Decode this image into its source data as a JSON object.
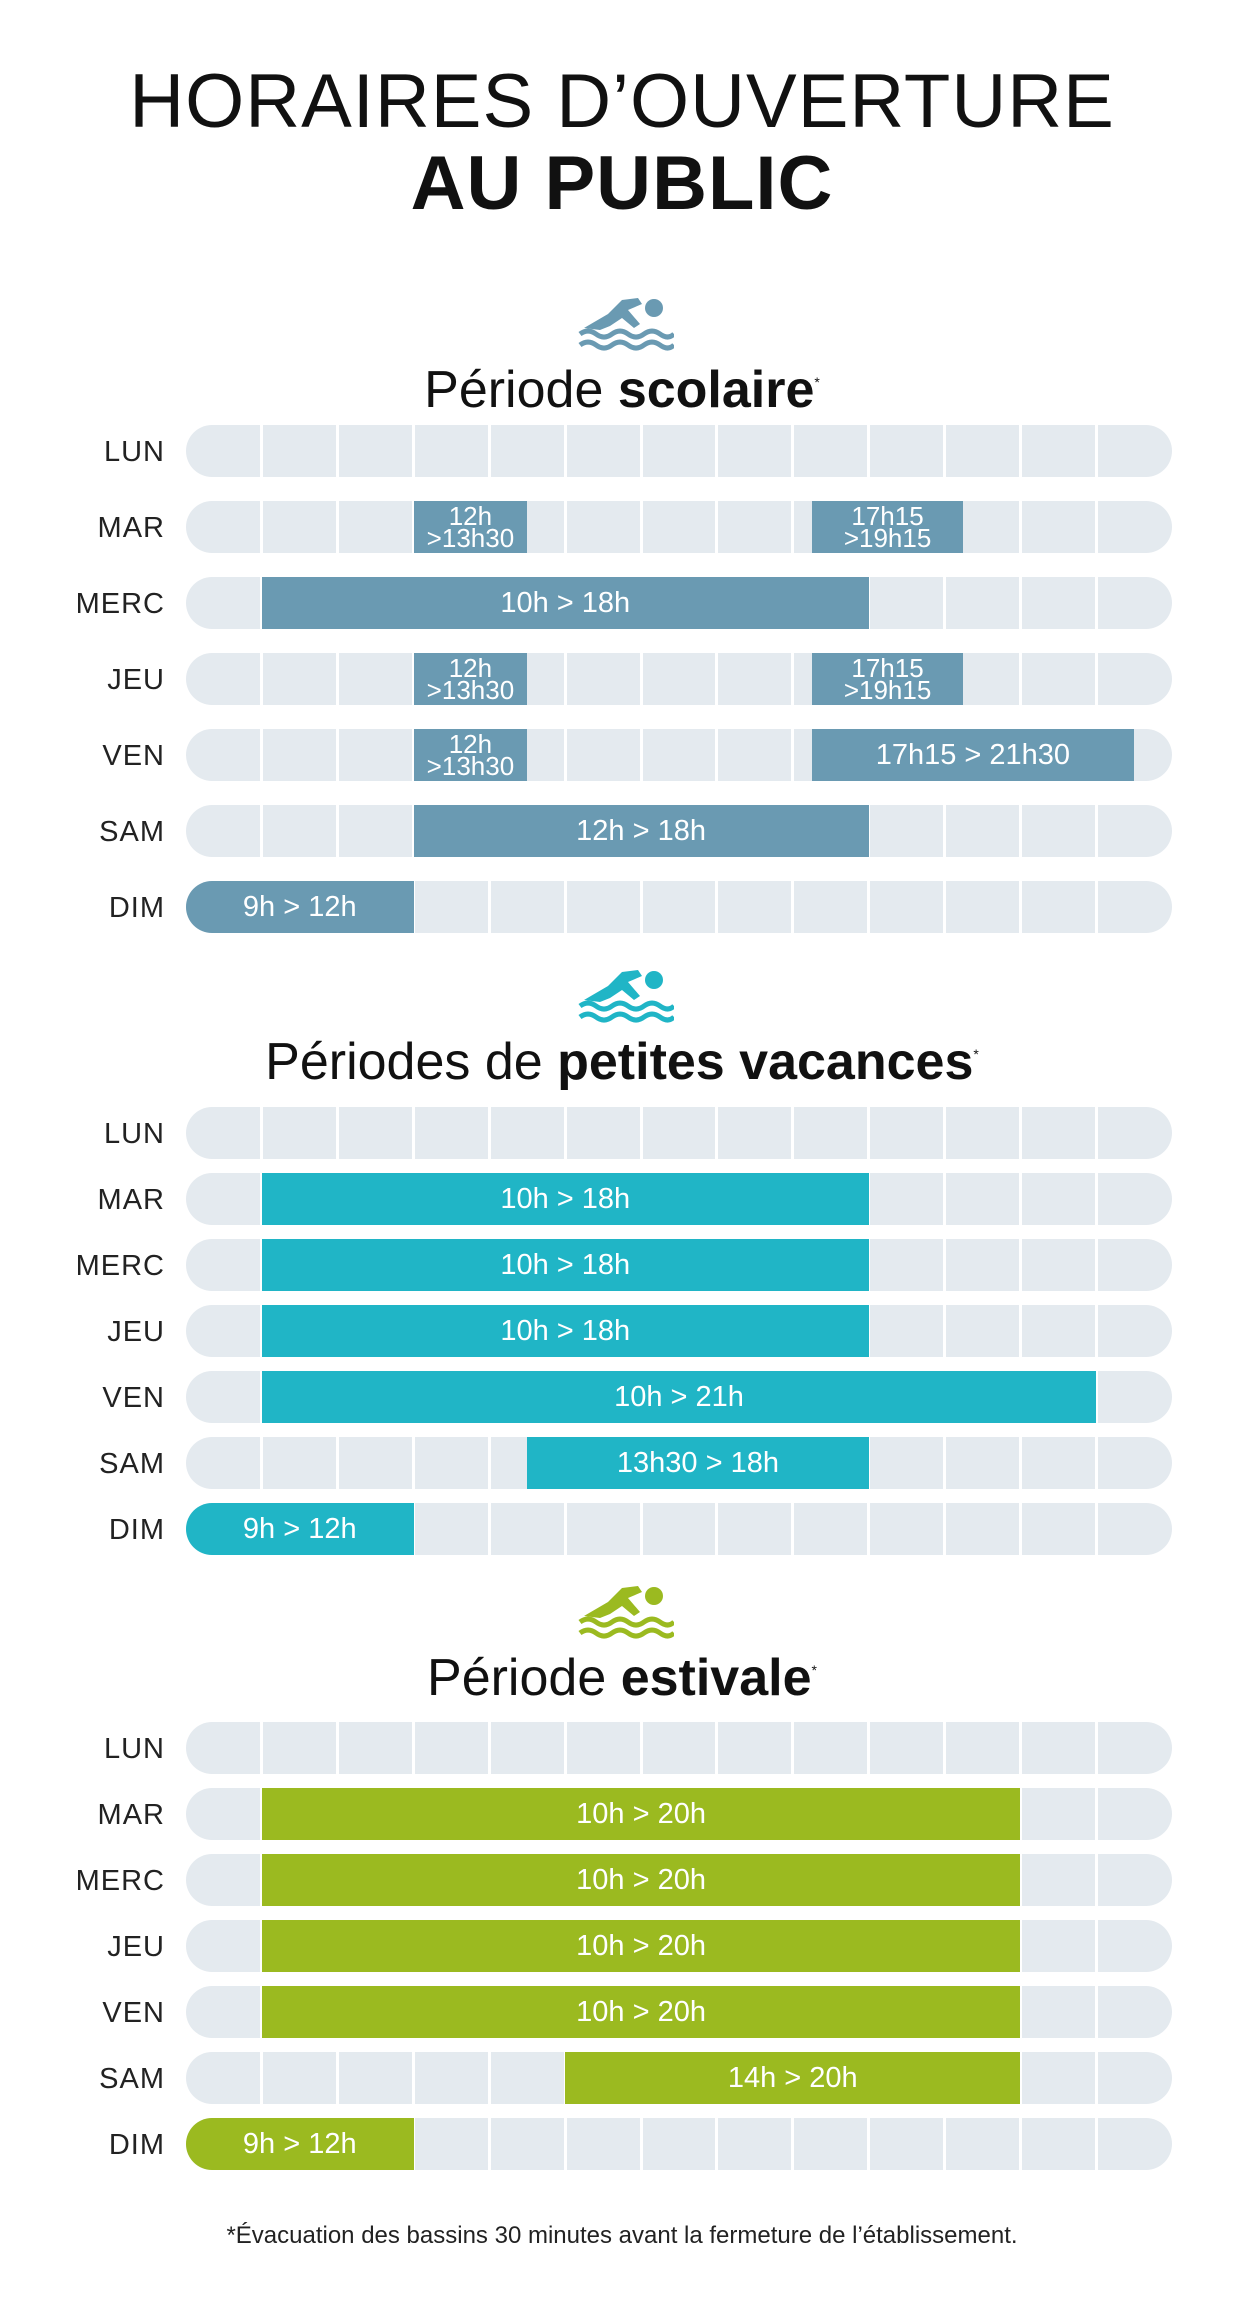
{
  "title": {
    "line1": "HORAIRES D’OUVERTURE",
    "line2": "AU PUBLIC"
  },
  "footnote": "*Évacuation des bassins 30 minutes avant la fermeture de l’établissement.",
  "chart_data": [
    {
      "type": "bar",
      "subtype": "horizontal-range-timeline",
      "title_prefix": "Période",
      "title_bold": "scolaire",
      "title_mark": "*",
      "color": "#6a9ab2",
      "icon": "swimmer-icon",
      "x_unit": "hour",
      "xlim": [
        9,
        22
      ],
      "grid": true,
      "days": [
        {
          "label": "LUN",
          "ranges": []
        },
        {
          "label": "MAR",
          "ranges": [
            {
              "start": 12,
              "end": 13.5,
              "label": "12h\n>13h30"
            },
            {
              "start": 17.25,
              "end": 19.25,
              "label": "17h15\n>19h15"
            }
          ]
        },
        {
          "label": "MERC",
          "ranges": [
            {
              "start": 10,
              "end": 18,
              "label": "10h > 18h"
            }
          ]
        },
        {
          "label": "JEU",
          "ranges": [
            {
              "start": 12,
              "end": 13.5,
              "label": "12h\n>13h30"
            },
            {
              "start": 17.25,
              "end": 19.25,
              "label": "17h15\n>19h15"
            }
          ]
        },
        {
          "label": "VEN",
          "ranges": [
            {
              "start": 12,
              "end": 13.5,
              "label": "12h\n>13h30"
            },
            {
              "start": 17.25,
              "end": 21.5,
              "label": "17h15 > 21h30"
            }
          ]
        },
        {
          "label": "SAM",
          "ranges": [
            {
              "start": 12,
              "end": 18,
              "label": "12h > 18h"
            }
          ]
        },
        {
          "label": "DIM",
          "ranges": [
            {
              "start": 9,
              "end": 12,
              "label": "9h > 12h"
            }
          ]
        }
      ]
    },
    {
      "type": "bar",
      "subtype": "horizontal-range-timeline",
      "title_prefix": "Périodes de",
      "title_bold": "petites vacances",
      "title_mark": "*",
      "color": "#20b5c6",
      "icon": "swimmer-icon",
      "x_unit": "hour",
      "xlim": [
        9,
        22
      ],
      "grid": true,
      "days": [
        {
          "label": "LUN",
          "ranges": []
        },
        {
          "label": "MAR",
          "ranges": [
            {
              "start": 10,
              "end": 18,
              "label": "10h > 18h"
            }
          ]
        },
        {
          "label": "MERC",
          "ranges": [
            {
              "start": 10,
              "end": 18,
              "label": "10h > 18h"
            }
          ]
        },
        {
          "label": "JEU",
          "ranges": [
            {
              "start": 10,
              "end": 18,
              "label": "10h > 18h"
            }
          ]
        },
        {
          "label": "VEN",
          "ranges": [
            {
              "start": 10,
              "end": 21,
              "label": "10h > 21h"
            }
          ]
        },
        {
          "label": "SAM",
          "ranges": [
            {
              "start": 13.5,
              "end": 18,
              "label": "13h30 > 18h"
            }
          ]
        },
        {
          "label": "DIM",
          "ranges": [
            {
              "start": 9,
              "end": 12,
              "label": "9h > 12h"
            }
          ]
        }
      ]
    },
    {
      "type": "bar",
      "subtype": "horizontal-range-timeline",
      "title_prefix": "Période",
      "title_bold": "estivale",
      "title_mark": "*",
      "color": "#9bba20",
      "icon": "swimmer-icon",
      "x_unit": "hour",
      "xlim": [
        9,
        22
      ],
      "grid": true,
      "days": [
        {
          "label": "LUN",
          "ranges": []
        },
        {
          "label": "MAR",
          "ranges": [
            {
              "start": 10,
              "end": 20,
              "label": "10h > 20h"
            }
          ]
        },
        {
          "label": "MERC",
          "ranges": [
            {
              "start": 10,
              "end": 20,
              "label": "10h > 20h"
            }
          ]
        },
        {
          "label": "JEU",
          "ranges": [
            {
              "start": 10,
              "end": 20,
              "label": "10h > 20h"
            }
          ]
        },
        {
          "label": "VEN",
          "ranges": [
            {
              "start": 10,
              "end": 20,
              "label": "10h > 20h"
            }
          ]
        },
        {
          "label": "SAM",
          "ranges": [
            {
              "start": 14,
              "end": 20,
              "label": "14h > 20h"
            }
          ]
        },
        {
          "label": "DIM",
          "ranges": [
            {
              "start": 9,
              "end": 12,
              "label": "9h > 12h"
            }
          ]
        }
      ]
    }
  ]
}
